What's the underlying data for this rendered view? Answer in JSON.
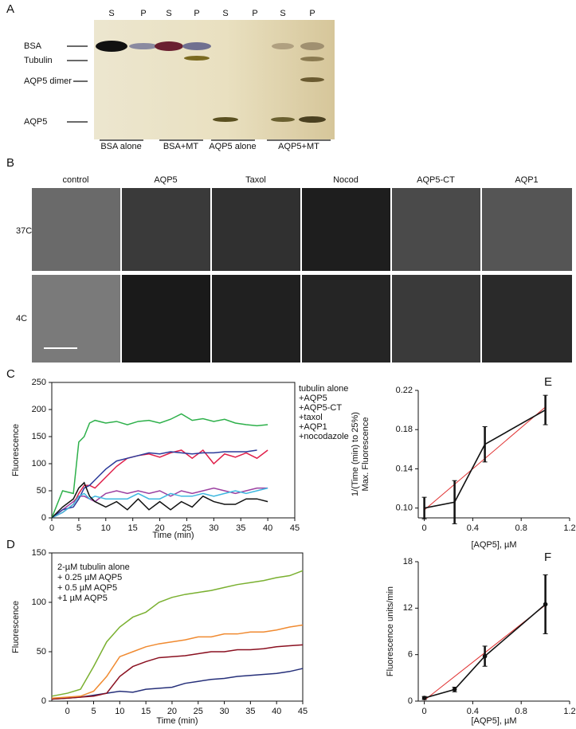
{
  "panel_labels": [
    "A",
    "B",
    "C",
    "D",
    "E",
    "F"
  ],
  "gel": {
    "lanes": [
      "S",
      "P",
      "S",
      "P",
      "S",
      "P",
      "S",
      "P"
    ],
    "bands": [
      "BSA",
      "Tubulin",
      "AQP5 dimer",
      "AQP5"
    ],
    "groups": [
      "BSA alone",
      "BSA+MT",
      "AQP5 alone",
      "AQP5+MT"
    ]
  },
  "microscopy": {
    "columns": [
      "control",
      "AQP5",
      "Taxol",
      "Nocod",
      "AQP5-CT",
      "AQP1"
    ],
    "rows": [
      "37C",
      "4C"
    ]
  },
  "chart_data": [
    {
      "type": "line",
      "xlabel": "Time (min)",
      "ylabel": "Fluorescence",
      "frame": true,
      "xlim": [
        0,
        45
      ],
      "ylim": [
        0,
        250
      ],
      "xticks": [
        0,
        5,
        10,
        15,
        20,
        25,
        30,
        35,
        40,
        45
      ],
      "yticks": [
        0,
        50,
        100,
        150,
        200,
        250
      ],
      "x": [
        0,
        2,
        4,
        5,
        6,
        7,
        8,
        10,
        12,
        14,
        16,
        18,
        20,
        22,
        24,
        26,
        28,
        30,
        32,
        34,
        36,
        38,
        40
      ],
      "series": [
        {
          "name": "tubulin alone",
          "color": "#9b3fa0",
          "values": [
            0,
            15,
            30,
            40,
            40,
            35,
            30,
            45,
            50,
            45,
            50,
            45,
            50,
            40,
            50,
            45,
            50,
            55,
            50,
            45,
            50,
            55,
            55
          ]
        },
        {
          "name": "+AQP5",
          "color": "#e0204a",
          "values": [
            0,
            10,
            25,
            45,
            60,
            60,
            55,
            75,
            95,
            110,
            115,
            118,
            112,
            120,
            125,
            110,
            125,
            100,
            118,
            112,
            120,
            110,
            125
          ]
        },
        {
          "name": "+AQP5-CT",
          "color": "#2b3a9a",
          "values": [
            0,
            15,
            20,
            35,
            55,
            60,
            70,
            90,
            105,
            110,
            115,
            120,
            118,
            122,
            120,
            118,
            120,
            120,
            122,
            122,
            122,
            125,
            null
          ]
        },
        {
          "name": "+taxol",
          "color": "#2db04a",
          "values": [
            0,
            50,
            45,
            140,
            150,
            175,
            180,
            175,
            178,
            172,
            178,
            180,
            175,
            182,
            192,
            180,
            183,
            178,
            182,
            175,
            172,
            170,
            172
          ]
        },
        {
          "name": "+AQP1",
          "color": "#3fb8e0",
          "values": [
            0,
            10,
            25,
            40,
            45,
            35,
            40,
            35,
            35,
            35,
            45,
            35,
            35,
            45,
            40,
            40,
            45,
            40,
            45,
            50,
            45,
            50,
            55
          ]
        },
        {
          "name": "+nocodazole",
          "color": "#111111",
          "values": [
            0,
            20,
            35,
            55,
            65,
            40,
            30,
            20,
            30,
            15,
            35,
            15,
            30,
            15,
            30,
            20,
            40,
            30,
            25,
            25,
            35,
            35,
            30
          ]
        }
      ]
    },
    {
      "type": "line",
      "xlabel": "Time (min)",
      "ylabel": "Fluorescence",
      "frame": true,
      "xlim": [
        -3,
        45
      ],
      "ylim": [
        0,
        150
      ],
      "xticks": [
        0,
        5,
        10,
        15,
        20,
        25,
        30,
        35,
        40,
        45
      ],
      "yticks": [
        0,
        50,
        100,
        150
      ],
      "x": [
        -3,
        0,
        2.5,
        5,
        7.5,
        10,
        12.5,
        15,
        17.5,
        20,
        22.5,
        25,
        27.5,
        30,
        32.5,
        35,
        37.5,
        40,
        42.5,
        45
      ],
      "series": [
        {
          "name": "2-µM tubulin alone",
          "color": "#26307a",
          "values": [
            2,
            3,
            4,
            6,
            8,
            10,
            9,
            12,
            13,
            14,
            18,
            20,
            22,
            23,
            25,
            26,
            27,
            28,
            30,
            33
          ]
        },
        {
          "name": "+ 0.25 µM AQP5",
          "color": "#8a1020",
          "values": [
            2,
            3,
            4,
            5,
            8,
            25,
            35,
            40,
            44,
            45,
            46,
            48,
            50,
            50,
            52,
            52,
            53,
            55,
            56,
            57
          ]
        },
        {
          "name": "+ 0.5 µM AQP5",
          "color": "#f08a30",
          "values": [
            3,
            4,
            5,
            10,
            25,
            45,
            50,
            55,
            58,
            60,
            62,
            65,
            65,
            68,
            68,
            70,
            70,
            72,
            75,
            77
          ]
        },
        {
          "name": "+1 µM AQP5",
          "color": "#7ab030",
          "values": [
            5,
            8,
            12,
            35,
            60,
            75,
            85,
            90,
            100,
            105,
            108,
            110,
            112,
            115,
            118,
            120,
            122,
            125,
            127,
            132
          ]
        }
      ]
    },
    {
      "type": "line",
      "xlabel": "[AQP5], µM",
      "ylabel": [
        "1/(Time (min) to 25%)",
        "Max. Fluorescence"
      ],
      "frame": false,
      "xlim": [
        -0.05,
        1.2
      ],
      "ylim": [
        0.09,
        0.22
      ],
      "xticks": [
        0,
        0.4,
        0.8,
        1.2
      ],
      "yticks": [
        {
          "value": 0.1,
          "label": "0.10"
        },
        0.14,
        0.18,
        0.22
      ],
      "x": [
        0,
        0.25,
        0.5,
        1
      ],
      "series": [
        {
          "color": "#111111",
          "values": [
            0.1,
            0.106,
            0.165,
            0.2
          ],
          "errors": [
            0.011,
            0.022,
            0.018,
            0.015
          ]
        }
      ],
      "fit": {
        "x": [
          0,
          1
        ],
        "values": [
          0.098,
          0.203
        ],
        "color": "#e03030"
      }
    },
    {
      "type": "line",
      "xlabel": "[AQP5], µM",
      "ylabel": "Fluorescence units/min",
      "frame": false,
      "markers": true,
      "xlim": [
        -0.05,
        1.2
      ],
      "ylim": [
        0,
        18
      ],
      "xticks": [
        0,
        0.4,
        0.8,
        1.2
      ],
      "yticks": [
        0,
        6,
        12,
        18
      ],
      "x": [
        0,
        0.25,
        0.5,
        1
      ],
      "series": [
        {
          "color": "#111111",
          "values": [
            0.4,
            1.5,
            5.8,
            12.5
          ],
          "errors": [
            0.2,
            0.3,
            1.3,
            3.8
          ]
        }
      ],
      "fit": {
        "x": [
          0,
          1
        ],
        "values": [
          0.1,
          12.4
        ],
        "color": "#e03030"
      }
    }
  ]
}
